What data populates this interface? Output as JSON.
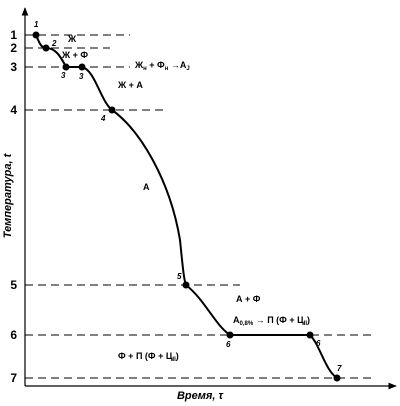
{
  "axes": {
    "y_label": "Температура, t",
    "x_label": "Время, τ"
  },
  "levels": [
    "1",
    "2",
    "3",
    "4",
    "5",
    "6",
    "7"
  ],
  "points": [
    "1",
    "2",
    "3",
    "3",
    "4",
    "5",
    "6",
    "6",
    "7"
  ],
  "regions": [
    {
      "runs": [
        {
          "text": "Ж"
        }
      ]
    },
    {
      "runs": [
        {
          "text": "Ж + Ф"
        }
      ]
    },
    {
      "runs": [
        {
          "text": "Ж"
        },
        {
          "sub": "н"
        },
        {
          "text": " + Ф"
        },
        {
          "sub": "н"
        },
        {
          "text": " →А"
        },
        {
          "sub": "J"
        }
      ]
    },
    {
      "runs": [
        {
          "text": "Ж + А"
        }
      ]
    },
    {
      "runs": [
        {
          "text": "А"
        }
      ]
    },
    {
      "runs": [
        {
          "text": "А + Ф"
        }
      ]
    },
    {
      "runs": [
        {
          "text": "А"
        },
        {
          "sub": "0,8%"
        },
        {
          "text": " → П (Ф + Ц"
        },
        {
          "sub": "II"
        },
        {
          "text": ")"
        }
      ]
    },
    {
      "runs": [
        {
          "text": "Ф + П (Ф + Ц"
        },
        {
          "sub": "II"
        },
        {
          "text": ")"
        }
      ]
    }
  ]
}
